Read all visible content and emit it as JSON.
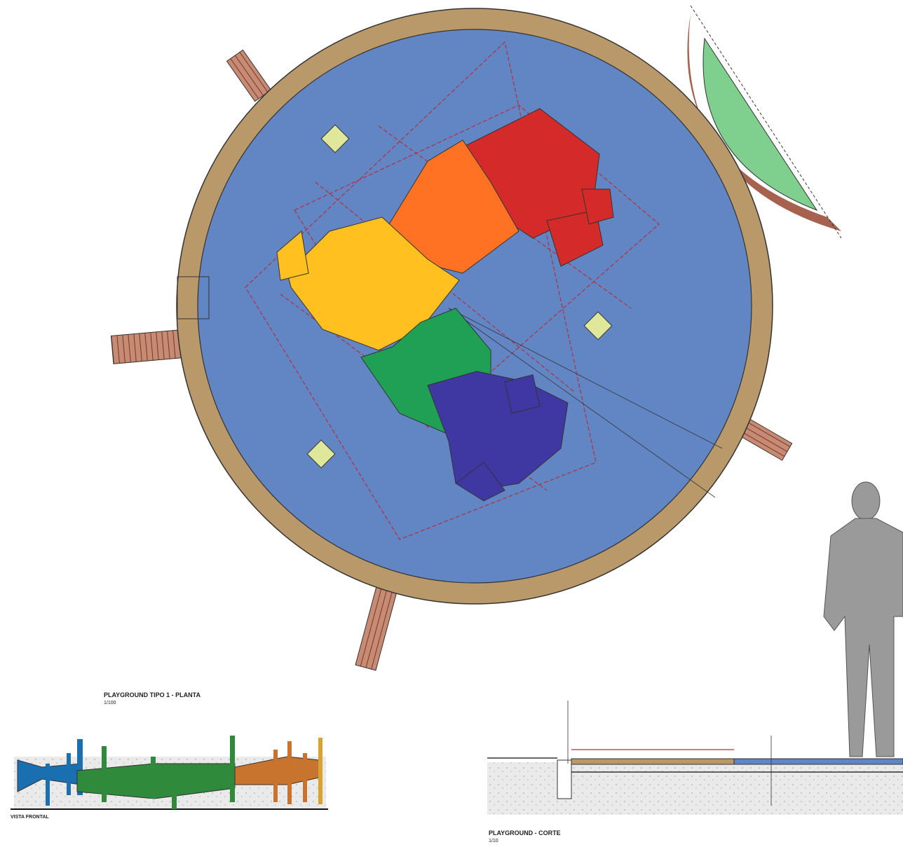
{
  "drawings": {
    "plan": {
      "title": "PLAYGROUND TIPO 1 - PLANTA",
      "scale": "1/100"
    },
    "section": {
      "title": "PLAYGROUND - CORTE",
      "scale": "1/10"
    },
    "elevation": {
      "title": "VISTA FRONTAL"
    }
  }
}
